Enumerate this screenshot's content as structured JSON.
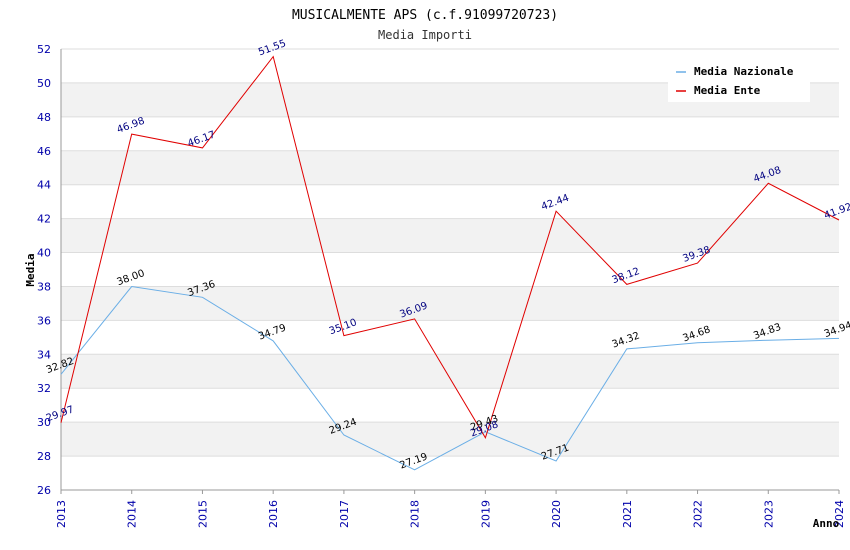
{
  "chart_data": {
    "type": "line",
    "title": "MUSICALMENTE APS (c.f.91099720723)",
    "subtitle": "Media Importi",
    "xlabel": "Anno",
    "ylabel": "Media",
    "ylim": [
      26,
      52
    ],
    "yticks": [
      26,
      28,
      30,
      32,
      34,
      36,
      38,
      40,
      42,
      44,
      46,
      48,
      50,
      52
    ],
    "categories": [
      "2013",
      "2014",
      "2015",
      "2016",
      "2017",
      "2018",
      "2019",
      "2020",
      "2021",
      "2022",
      "2023",
      "2024"
    ],
    "series": [
      {
        "name": "Media Nazionale",
        "color": "#6aaee6",
        "values": [
          32.82,
          38.0,
          37.36,
          34.79,
          29.24,
          27.19,
          29.43,
          27.71,
          34.32,
          34.68,
          34.83,
          34.94
        ],
        "labels": [
          "32.82",
          "38.00",
          "37.36",
          "34.79",
          "29.24",
          "27.19",
          "29.43",
          "27.71",
          "34.32",
          "34.68",
          "34.83",
          "34.94"
        ]
      },
      {
        "name": "Media Ente",
        "color": "#e00000",
        "values": [
          29.97,
          46.98,
          46.17,
          51.55,
          35.1,
          36.09,
          29.08,
          42.44,
          38.12,
          39.38,
          44.08,
          41.92
        ],
        "labels": [
          "29.97",
          "46.98",
          "46.17",
          "51.55",
          "35.10",
          "36.09",
          "29.08",
          "42.44",
          "38.12",
          "39.38",
          "44.08",
          "41.92"
        ]
      }
    ],
    "legend": "top-right",
    "grid": true
  }
}
